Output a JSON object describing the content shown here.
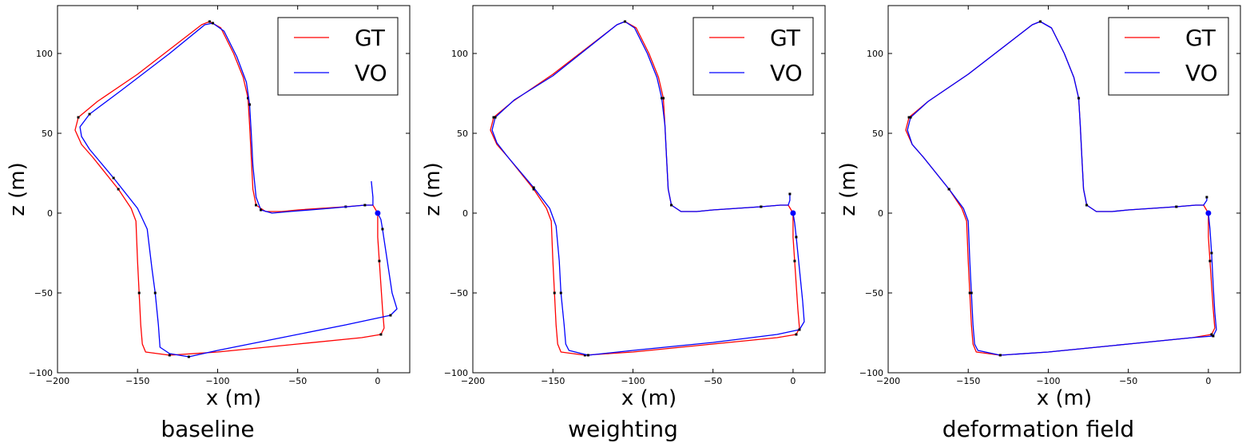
{
  "chart_data": [
    {
      "type": "line",
      "caption": "baseline",
      "xlabel": "x (m)",
      "ylabel": "z (m)",
      "xlim": [
        -200,
        20
      ],
      "ylim": [
        -100,
        130
      ],
      "xticks": [
        -200,
        -150,
        -100,
        -50,
        0
      ],
      "yticks": [
        -100,
        -50,
        0,
        50,
        100
      ],
      "xtick_labels": [
        "−200",
        "−150",
        "−100",
        "−50",
        "0"
      ],
      "ytick_labels": [
        "−100",
        "−50",
        "0",
        "50",
        "100"
      ],
      "legend": {
        "position": "top-right",
        "entries": [
          "GT",
          "VO"
        ]
      },
      "start_point": [
        0,
        0
      ],
      "series": [
        {
          "name": "GT",
          "color": "#ff0000",
          "points": [
            [
              0,
              0
            ],
            [
              0,
              -15
            ],
            [
              1,
              -30
            ],
            [
              2,
              -45
            ],
            [
              3,
              -60
            ],
            [
              4,
              -72
            ],
            [
              2,
              -76
            ],
            [
              -10,
              -78
            ],
            [
              -50,
              -82
            ],
            [
              -100,
              -87
            ],
            [
              -130,
              -89
            ],
            [
              -145,
              -87
            ],
            [
              -147,
              -82
            ],
            [
              -148,
              -70
            ],
            [
              -149,
              -50
            ],
            [
              -150,
              -30
            ],
            [
              -151,
              -5
            ],
            [
              -154,
              3
            ],
            [
              -162,
              15
            ],
            [
              -178,
              35
            ],
            [
              -185,
              43
            ],
            [
              -189,
              52
            ],
            [
              -187,
              60
            ],
            [
              -175,
              70
            ],
            [
              -150,
              87
            ],
            [
              -110,
              118
            ],
            [
              -105,
              120
            ],
            [
              -98,
              116
            ],
            [
              -90,
              100
            ],
            [
              -84,
              85
            ],
            [
              -81,
              72
            ],
            [
              -80,
              55
            ],
            [
              -79,
              35
            ],
            [
              -78,
              15
            ],
            [
              -76,
              5
            ],
            [
              -70,
              1
            ],
            [
              -60,
              1
            ],
            [
              -50,
              2
            ],
            [
              -20,
              4
            ],
            [
              -8,
              5
            ],
            [
              -3,
              5
            ],
            [
              0,
              0
            ]
          ]
        },
        {
          "name": "VO",
          "color": "#0000ff",
          "points": [
            [
              0,
              0
            ],
            [
              2,
              -4
            ],
            [
              3,
              -10
            ],
            [
              6,
              -30
            ],
            [
              9,
              -50
            ],
            [
              12,
              -60
            ],
            [
              8,
              -64
            ],
            [
              -20,
              -70
            ],
            [
              -60,
              -78
            ],
            [
              -100,
              -86
            ],
            [
              -118,
              -90
            ],
            [
              -130,
              -88
            ],
            [
              -136,
              -84
            ],
            [
              -137,
              -70
            ],
            [
              -139,
              -50
            ],
            [
              -141,
              -35
            ],
            [
              -144,
              -10
            ],
            [
              -150,
              3
            ],
            [
              -165,
              22
            ],
            [
              -180,
              40
            ],
            [
              -185,
              48
            ],
            [
              -186,
              54
            ],
            [
              -180,
              62
            ],
            [
              -160,
              77
            ],
            [
              -130,
              100
            ],
            [
              -108,
              118
            ],
            [
              -103,
              119
            ],
            [
              -96,
              114
            ],
            [
              -88,
              98
            ],
            [
              -82,
              82
            ],
            [
              -80,
              68
            ],
            [
              -79,
              50
            ],
            [
              -78,
              30
            ],
            [
              -76,
              10
            ],
            [
              -73,
              2
            ],
            [
              -66,
              0
            ],
            [
              -55,
              1
            ],
            [
              -30,
              3
            ],
            [
              -8,
              5
            ],
            [
              -3,
              5
            ],
            [
              -3,
              10
            ],
            [
              -4,
              20
            ]
          ]
        }
      ]
    },
    {
      "type": "line",
      "caption": "weighting",
      "xlabel": "x (m)",
      "ylabel": "z (m)",
      "xlim": [
        -200,
        20
      ],
      "ylim": [
        -100,
        130
      ],
      "xticks": [
        -200,
        -150,
        -100,
        -50,
        0
      ],
      "yticks": [
        -100,
        -50,
        0,
        50,
        100
      ],
      "xtick_labels": [
        "−200",
        "−150",
        "−100",
        "−50",
        "0"
      ],
      "ytick_labels": [
        "−100",
        "−50",
        "0",
        "50",
        "100"
      ],
      "legend": {
        "position": "top-right",
        "entries": [
          "GT",
          "VO"
        ]
      },
      "start_point": [
        0,
        0
      ],
      "series": [
        {
          "name": "GT",
          "color": "#ff0000",
          "points": [
            [
              0,
              0
            ],
            [
              0,
              -15
            ],
            [
              1,
              -30
            ],
            [
              2,
              -45
            ],
            [
              3,
              -60
            ],
            [
              4,
              -72
            ],
            [
              2,
              -76
            ],
            [
              -10,
              -78
            ],
            [
              -50,
              -82
            ],
            [
              -100,
              -87
            ],
            [
              -130,
              -89
            ],
            [
              -145,
              -87
            ],
            [
              -147,
              -82
            ],
            [
              -148,
              -70
            ],
            [
              -149,
              -50
            ],
            [
              -150,
              -30
            ],
            [
              -151,
              -5
            ],
            [
              -154,
              3
            ],
            [
              -162,
              15
            ],
            [
              -178,
              35
            ],
            [
              -185,
              43
            ],
            [
              -189,
              52
            ],
            [
              -187,
              60
            ],
            [
              -175,
              70
            ],
            [
              -150,
              87
            ],
            [
              -110,
              118
            ],
            [
              -105,
              120
            ],
            [
              -98,
              116
            ],
            [
              -90,
              100
            ],
            [
              -84,
              85
            ],
            [
              -81,
              72
            ],
            [
              -80,
              55
            ],
            [
              -79,
              35
            ],
            [
              -78,
              15
            ],
            [
              -76,
              5
            ],
            [
              -70,
              1
            ],
            [
              -60,
              1
            ],
            [
              -50,
              2
            ],
            [
              -20,
              4
            ],
            [
              -8,
              5
            ],
            [
              -3,
              5
            ],
            [
              0,
              0
            ]
          ]
        },
        {
          "name": "VO",
          "color": "#0000ff",
          "points": [
            [
              0,
              0
            ],
            [
              1,
              -6
            ],
            [
              2,
              -15
            ],
            [
              4,
              -35
            ],
            [
              6,
              -55
            ],
            [
              7,
              -68
            ],
            [
              4,
              -73
            ],
            [
              -10,
              -76
            ],
            [
              -50,
              -81
            ],
            [
              -100,
              -86
            ],
            [
              -128,
              -89
            ],
            [
              -140,
              -86
            ],
            [
              -142,
              -82
            ],
            [
              -143,
              -70
            ],
            [
              -145,
              -50
            ],
            [
              -146,
              -30
            ],
            [
              -148,
              -8
            ],
            [
              -152,
              3
            ],
            [
              -162,
              16
            ],
            [
              -178,
              35
            ],
            [
              -185,
              44
            ],
            [
              -188,
              52
            ],
            [
              -186,
              60
            ],
            [
              -174,
              71
            ],
            [
              -150,
              86
            ],
            [
              -110,
              118
            ],
            [
              -105,
              120
            ],
            [
              -99,
              116
            ],
            [
              -91,
              100
            ],
            [
              -85,
              85
            ],
            [
              -82,
              72
            ],
            [
              -80,
              55
            ],
            [
              -79,
              35
            ],
            [
              -78,
              15
            ],
            [
              -76,
              5
            ],
            [
              -70,
              1
            ],
            [
              -60,
              1
            ],
            [
              -50,
              2
            ],
            [
              -20,
              4
            ],
            [
              -8,
              5
            ],
            [
              -3,
              5
            ],
            [
              -2,
              8
            ],
            [
              -2,
              12
            ]
          ]
        }
      ]
    },
    {
      "type": "line",
      "caption": "deformation field",
      "xlabel": "x (m)",
      "ylabel": "z (m)",
      "xlim": [
        -200,
        20
      ],
      "ylim": [
        -100,
        130
      ],
      "xticks": [
        -200,
        -150,
        -100,
        -50,
        0
      ],
      "yticks": [
        -100,
        -50,
        0,
        50,
        100
      ],
      "xtick_labels": [
        "−200",
        "−150",
        "−100",
        "−50",
        "0"
      ],
      "ytick_labels": [
        "−100",
        "−50",
        "0",
        "50",
        "100"
      ],
      "legend": {
        "position": "top-right",
        "entries": [
          "GT",
          "VO"
        ]
      },
      "start_point": [
        0,
        0
      ],
      "series": [
        {
          "name": "GT",
          "color": "#ff0000",
          "points": [
            [
              0,
              0
            ],
            [
              0,
              -15
            ],
            [
              1,
              -30
            ],
            [
              2,
              -45
            ],
            [
              3,
              -60
            ],
            [
              4,
              -72
            ],
            [
              2,
              -76
            ],
            [
              -10,
              -78
            ],
            [
              -50,
              -82
            ],
            [
              -100,
              -87
            ],
            [
              -130,
              -89
            ],
            [
              -145,
              -87
            ],
            [
              -147,
              -82
            ],
            [
              -148,
              -70
            ],
            [
              -149,
              -50
            ],
            [
              -150,
              -30
            ],
            [
              -151,
              -5
            ],
            [
              -154,
              3
            ],
            [
              -162,
              15
            ],
            [
              -178,
              35
            ],
            [
              -185,
              43
            ],
            [
              -189,
              52
            ],
            [
              -187,
              60
            ],
            [
              -175,
              70
            ],
            [
              -150,
              87
            ],
            [
              -110,
              118
            ],
            [
              -105,
              120
            ],
            [
              -98,
              116
            ],
            [
              -90,
              100
            ],
            [
              -84,
              85
            ],
            [
              -81,
              72
            ],
            [
              -80,
              55
            ],
            [
              -79,
              35
            ],
            [
              -78,
              15
            ],
            [
              -76,
              5
            ],
            [
              -70,
              1
            ],
            [
              -60,
              1
            ],
            [
              -50,
              2
            ],
            [
              -20,
              4
            ],
            [
              -8,
              5
            ],
            [
              -3,
              5
            ],
            [
              0,
              0
            ]
          ]
        },
        {
          "name": "VO",
          "color": "#0000ff",
          "points": [
            [
              0,
              0
            ],
            [
              1,
              -10
            ],
            [
              2,
              -25
            ],
            [
              3,
              -45
            ],
            [
              4,
              -62
            ],
            [
              5,
              -73
            ],
            [
              3,
              -77
            ],
            [
              -10,
              -78
            ],
            [
              -50,
              -82
            ],
            [
              -100,
              -87
            ],
            [
              -130,
              -89
            ],
            [
              -144,
              -86
            ],
            [
              -146,
              -82
            ],
            [
              -147,
              -70
            ],
            [
              -148,
              -50
            ],
            [
              -149,
              -30
            ],
            [
              -150,
              -5
            ],
            [
              -153,
              3
            ],
            [
              -162,
              15
            ],
            [
              -178,
              35
            ],
            [
              -185,
              43
            ],
            [
              -188,
              52
            ],
            [
              -186,
              60
            ],
            [
              -175,
              70
            ],
            [
              -150,
              87
            ],
            [
              -110,
              118
            ],
            [
              -105,
              120
            ],
            [
              -98,
              116
            ],
            [
              -90,
              100
            ],
            [
              -84,
              85
            ],
            [
              -81,
              72
            ],
            [
              -80,
              55
            ],
            [
              -79,
              35
            ],
            [
              -78,
              15
            ],
            [
              -76,
              5
            ],
            [
              -70,
              1
            ],
            [
              -60,
              1
            ],
            [
              -50,
              2
            ],
            [
              -20,
              4
            ],
            [
              -8,
              5
            ],
            [
              -3,
              5
            ],
            [
              -1,
              8
            ],
            [
              -1,
              10
            ]
          ]
        }
      ]
    }
  ]
}
